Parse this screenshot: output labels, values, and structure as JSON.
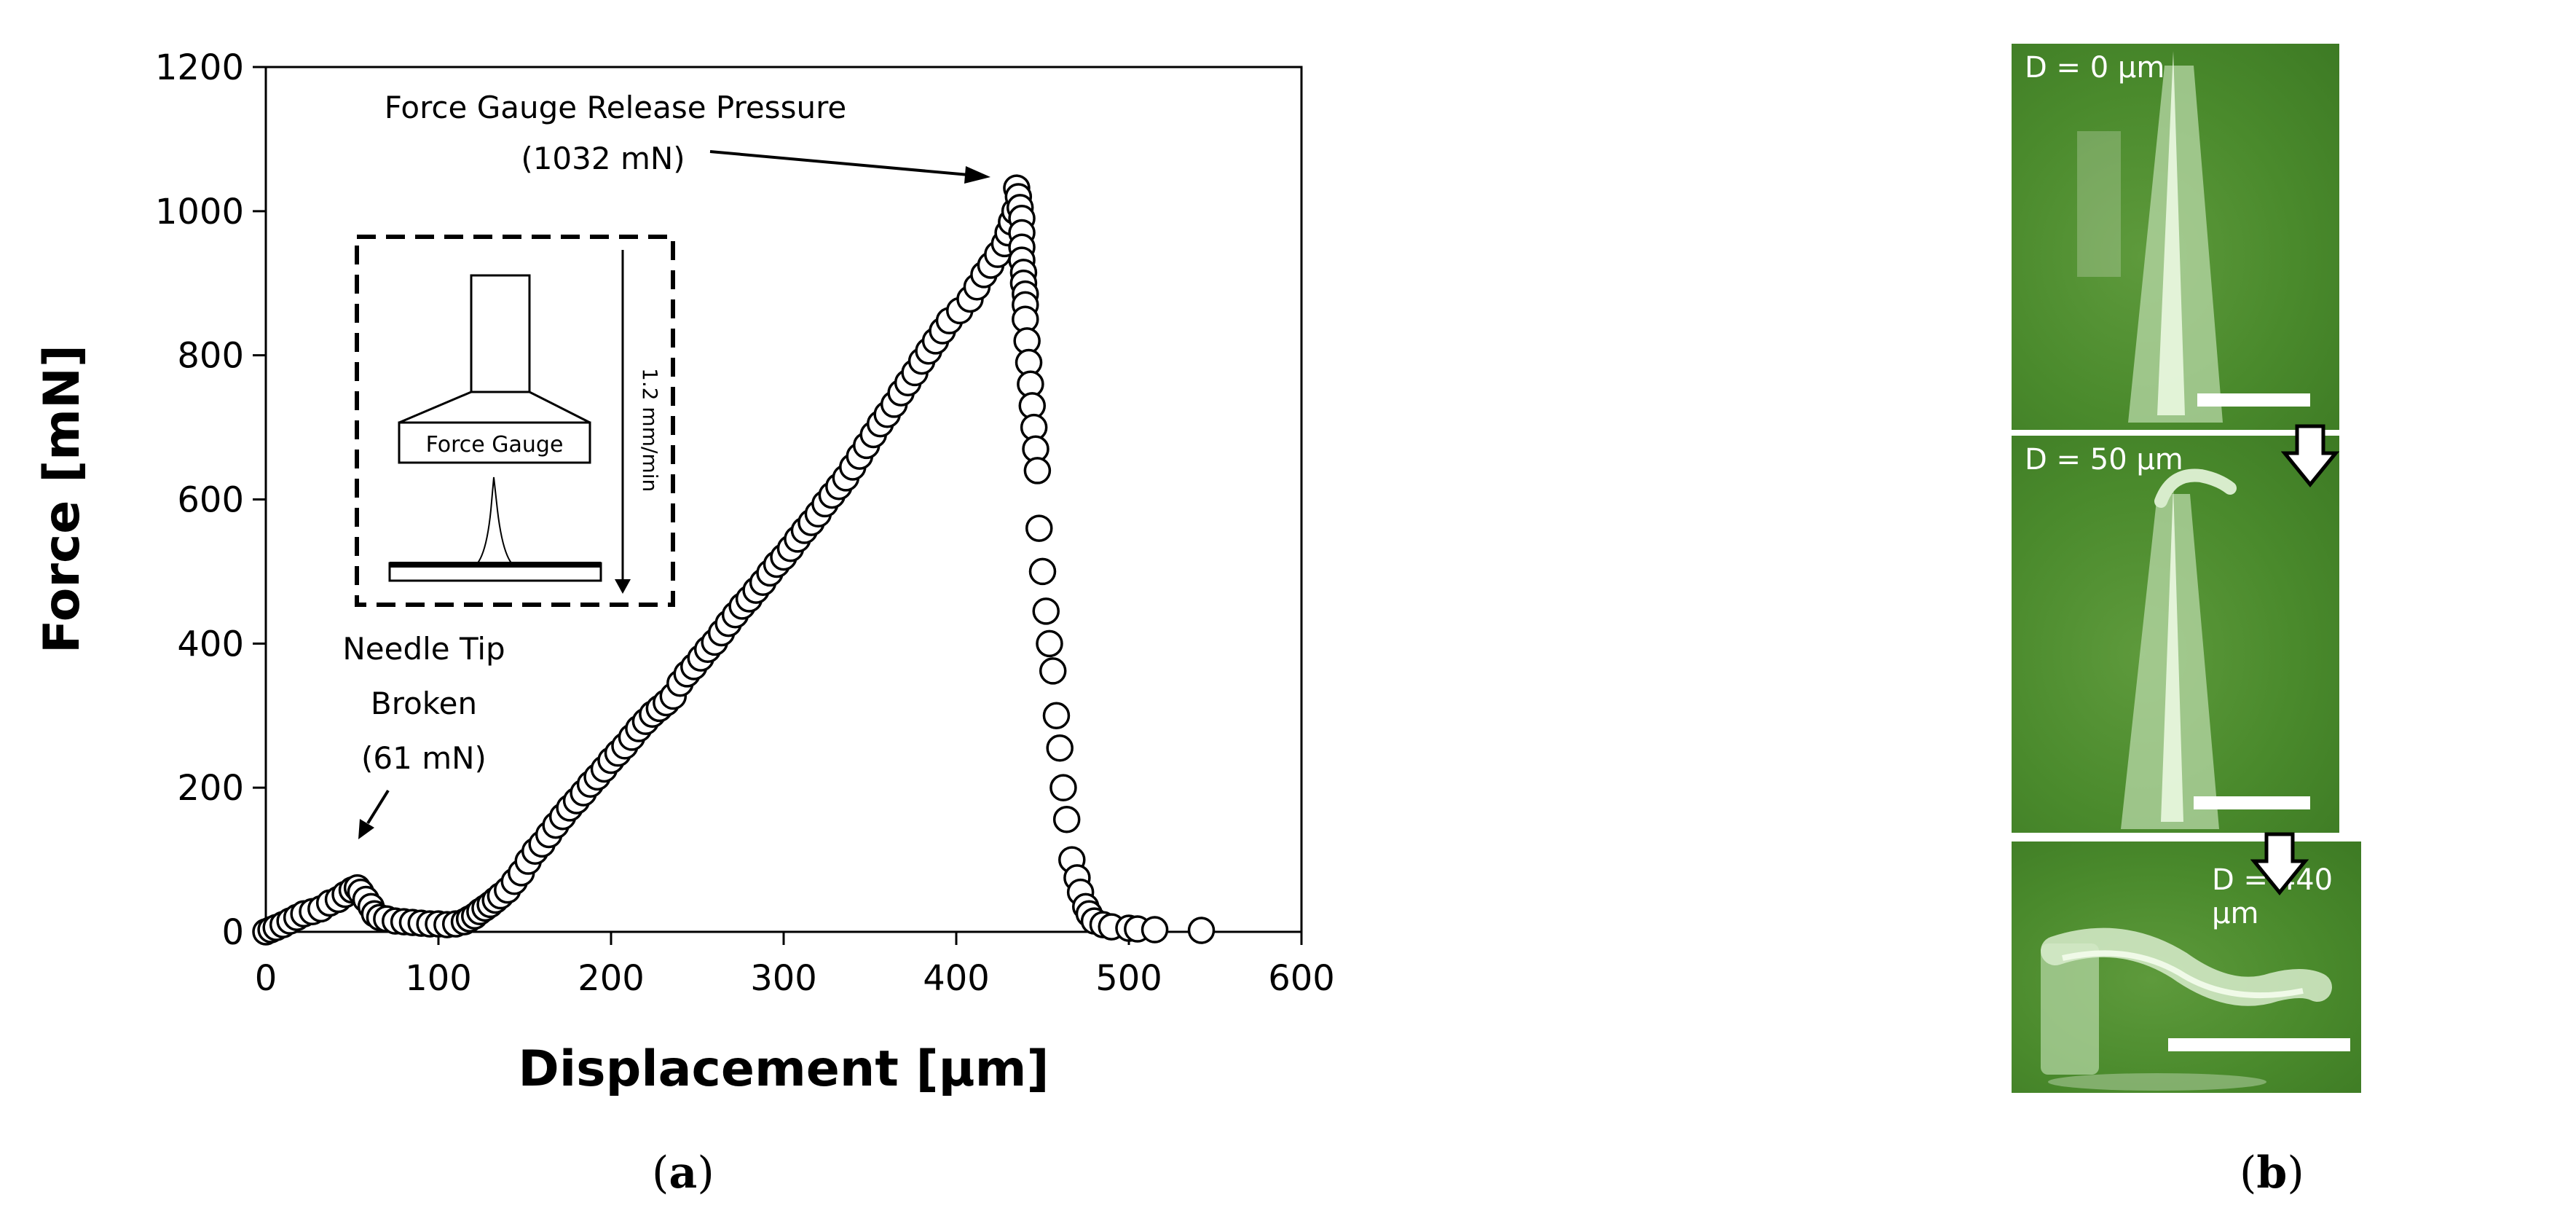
{
  "chart_data": {
    "type": "scatter",
    "xlabel": "Displacement [µm]",
    "ylabel": "Force [mN]",
    "xlim": [
      0,
      600
    ],
    "ylim": [
      0,
      1200
    ],
    "xticks": [
      0,
      100,
      200,
      300,
      400,
      500,
      600
    ],
    "yticks": [
      0,
      200,
      400,
      600,
      800,
      1000,
      1200
    ],
    "grid": false,
    "annotations": [
      {
        "id": "release",
        "lines": [
          "Force Gauge Release Pressure",
          "(1032 mN)"
        ],
        "x": 435,
        "y": 1032
      },
      {
        "id": "tip",
        "lines": [
          "Needle Tip",
          "Broken",
          "(61 mN)"
        ],
        "x": 50,
        "y": 61
      }
    ],
    "inset": {
      "gauge_label": "Force Gauge",
      "rate_label": "1.2 mm/min"
    },
    "points": [
      [
        0,
        0
      ],
      [
        3,
        3
      ],
      [
        6,
        6
      ],
      [
        10,
        10
      ],
      [
        14,
        15
      ],
      [
        18,
        20
      ],
      [
        22,
        25
      ],
      [
        27,
        28
      ],
      [
        32,
        32
      ],
      [
        37,
        40
      ],
      [
        42,
        45
      ],
      [
        46,
        52
      ],
      [
        50,
        58
      ],
      [
        53,
        61
      ],
      [
        55,
        55
      ],
      [
        58,
        45
      ],
      [
        61,
        35
      ],
      [
        63,
        25
      ],
      [
        66,
        20
      ],
      [
        70,
        18
      ],
      [
        75,
        15
      ],
      [
        80,
        14
      ],
      [
        85,
        13
      ],
      [
        90,
        12
      ],
      [
        95,
        11
      ],
      [
        100,
        11
      ],
      [
        105,
        10
      ],
      [
        110,
        11
      ],
      [
        115,
        14
      ],
      [
        118,
        18
      ],
      [
        121,
        22
      ],
      [
        124,
        28
      ],
      [
        127,
        33
      ],
      [
        130,
        38
      ],
      [
        133,
        44
      ],
      [
        136,
        50
      ],
      [
        140,
        58
      ],
      [
        144,
        70
      ],
      [
        148,
        82
      ],
      [
        152,
        98
      ],
      [
        156,
        112
      ],
      [
        160,
        122
      ],
      [
        164,
        135
      ],
      [
        168,
        148
      ],
      [
        172,
        160
      ],
      [
        176,
        172
      ],
      [
        180,
        182
      ],
      [
        184,
        193
      ],
      [
        188,
        205
      ],
      [
        192,
        215
      ],
      [
        196,
        226
      ],
      [
        200,
        238
      ],
      [
        204,
        248
      ],
      [
        208,
        258
      ],
      [
        212,
        270
      ],
      [
        216,
        282
      ],
      [
        220,
        292
      ],
      [
        224,
        302
      ],
      [
        228,
        310
      ],
      [
        232,
        318
      ],
      [
        236,
        327
      ],
      [
        240,
        345
      ],
      [
        244,
        358
      ],
      [
        248,
        368
      ],
      [
        252,
        380
      ],
      [
        256,
        392
      ],
      [
        260,
        402
      ],
      [
        264,
        415
      ],
      [
        268,
        428
      ],
      [
        272,
        440
      ],
      [
        276,
        452
      ],
      [
        280,
        462
      ],
      [
        284,
        474
      ],
      [
        288,
        485
      ],
      [
        292,
        498
      ],
      [
        296,
        510
      ],
      [
        300,
        520
      ],
      [
        304,
        532
      ],
      [
        308,
        545
      ],
      [
        312,
        557
      ],
      [
        316,
        568
      ],
      [
        320,
        580
      ],
      [
        324,
        594
      ],
      [
        328,
        606
      ],
      [
        332,
        618
      ],
      [
        336,
        630
      ],
      [
        340,
        645
      ],
      [
        344,
        660
      ],
      [
        348,
        675
      ],
      [
        352,
        690
      ],
      [
        356,
        705
      ],
      [
        360,
        718
      ],
      [
        364,
        732
      ],
      [
        368,
        748
      ],
      [
        372,
        762
      ],
      [
        376,
        776
      ],
      [
        380,
        792
      ],
      [
        384,
        806
      ],
      [
        388,
        820
      ],
      [
        392,
        834
      ],
      [
        396,
        848
      ],
      [
        402,
        862
      ],
      [
        408,
        878
      ],
      [
        412,
        895
      ],
      [
        416,
        912
      ],
      [
        420,
        925
      ],
      [
        424,
        940
      ],
      [
        428,
        955
      ],
      [
        430,
        970
      ],
      [
        432,
        985
      ],
      [
        434,
        1000
      ],
      [
        435,
        1032
      ],
      [
        436,
        1020
      ],
      [
        437,
        1005
      ],
      [
        438,
        990
      ],
      [
        438,
        970
      ],
      [
        438,
        950
      ],
      [
        438,
        932
      ],
      [
        439,
        915
      ],
      [
        439,
        900
      ],
      [
        440,
        885
      ],
      [
        440,
        870
      ],
      [
        440,
        850
      ],
      [
        441,
        820
      ],
      [
        442,
        790
      ],
      [
        443,
        760
      ],
      [
        444,
        730
      ],
      [
        445,
        700
      ],
      [
        446,
        670
      ],
      [
        447,
        640
      ],
      [
        448,
        560
      ],
      [
        450,
        500
      ],
      [
        452,
        445
      ],
      [
        454,
        400
      ],
      [
        456,
        362
      ],
      [
        458,
        300
      ],
      [
        460,
        255
      ],
      [
        462,
        200
      ],
      [
        464,
        156
      ],
      [
        467,
        100
      ],
      [
        470,
        75
      ],
      [
        472,
        55
      ],
      [
        475,
        35
      ],
      [
        477,
        25
      ],
      [
        480,
        15
      ],
      [
        485,
        10
      ],
      [
        490,
        7
      ],
      [
        500,
        5
      ],
      [
        505,
        4
      ],
      [
        515,
        3
      ],
      [
        542,
        2
      ]
    ]
  },
  "panels": {
    "a_label": "a",
    "b_label": "b",
    "photos": [
      {
        "label": "D = 0 µm"
      },
      {
        "label": "D = 50 µm"
      },
      {
        "label": "D = 440 µm"
      }
    ]
  },
  "colors": {
    "marker_fill": "#ffffff",
    "marker_stroke": "#000000",
    "photo_bg": "#4a8a2c",
    "scalebar": "#ffffff"
  }
}
